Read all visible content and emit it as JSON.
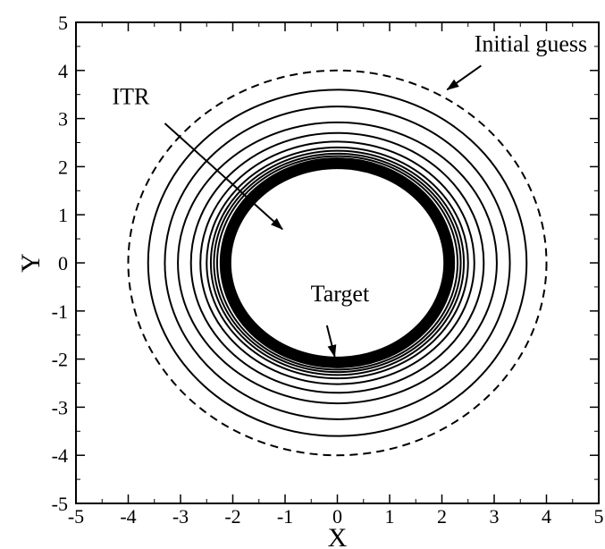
{
  "chart_data": {
    "type": "line",
    "title": "",
    "xlabel": "X",
    "ylabel": "Y",
    "xlim": [
      -5,
      5
    ],
    "ylim": [
      -5,
      5
    ],
    "xticks": [
      -5,
      -4,
      -3,
      -2,
      -1,
      0,
      1,
      2,
      3,
      4,
      5
    ],
    "yticks": [
      -5,
      -4,
      -3,
      -2,
      -1,
      0,
      1,
      2,
      3,
      4,
      5
    ],
    "xtick_labels": [
      "-5",
      "-4",
      "-3",
      "-2",
      "-1",
      "0",
      "1",
      "2",
      "3",
      "4",
      "5"
    ],
    "ytick_labels": [
      "-5",
      "-4",
      "-3",
      "-2",
      "-1",
      "0",
      "1",
      "2",
      "3",
      "4",
      "5"
    ],
    "grid": false,
    "legend": "none",
    "initial_guess": {
      "cx": 0,
      "cy": 0,
      "rx": 4.0,
      "ry": 4.0,
      "style": "dashed"
    },
    "iterations": [
      {
        "cx": 0,
        "cy": 0,
        "rx": 3.62,
        "ry": 3.6
      },
      {
        "cx": 0,
        "cy": 0,
        "rx": 3.3,
        "ry": 3.25
      },
      {
        "cx": 0,
        "cy": 0,
        "rx": 3.05,
        "ry": 2.92
      },
      {
        "cx": 0,
        "cy": 0,
        "rx": 2.8,
        "ry": 2.7
      },
      {
        "cx": 0,
        "cy": 0,
        "rx": 2.62,
        "ry": 2.52
      },
      {
        "cx": 0,
        "cy": 0,
        "rx": 2.5,
        "ry": 2.4
      },
      {
        "cx": 0,
        "cy": 0,
        "rx": 2.42,
        "ry": 2.33
      },
      {
        "cx": 0,
        "cy": 0,
        "rx": 2.36,
        "ry": 2.27
      },
      {
        "cx": 0,
        "cy": 0,
        "rx": 2.3,
        "ry": 2.22
      }
    ],
    "target_band": {
      "cx": 0,
      "cy": 0,
      "rx": 2.14,
      "ry": 2.07
    },
    "annotations": [
      {
        "text": "Initial guess",
        "text_x": 3.7,
        "text_y": 4.4,
        "arrow_from": [
          2.75,
          4.1
        ],
        "arrow_to": [
          2.1,
          3.6
        ]
      },
      {
        "text": "ITR",
        "text_x": -3.95,
        "text_y": 3.3,
        "arrow_from": [
          -3.3,
          2.9
        ],
        "arrow_to": [
          -1.05,
          0.7
        ]
      },
      {
        "text": "Target",
        "text_x": 0.05,
        "text_y": -0.8,
        "arrow_from": [
          -0.2,
          -1.3
        ],
        "arrow_to": [
          -0.05,
          -1.95
        ]
      }
    ]
  }
}
